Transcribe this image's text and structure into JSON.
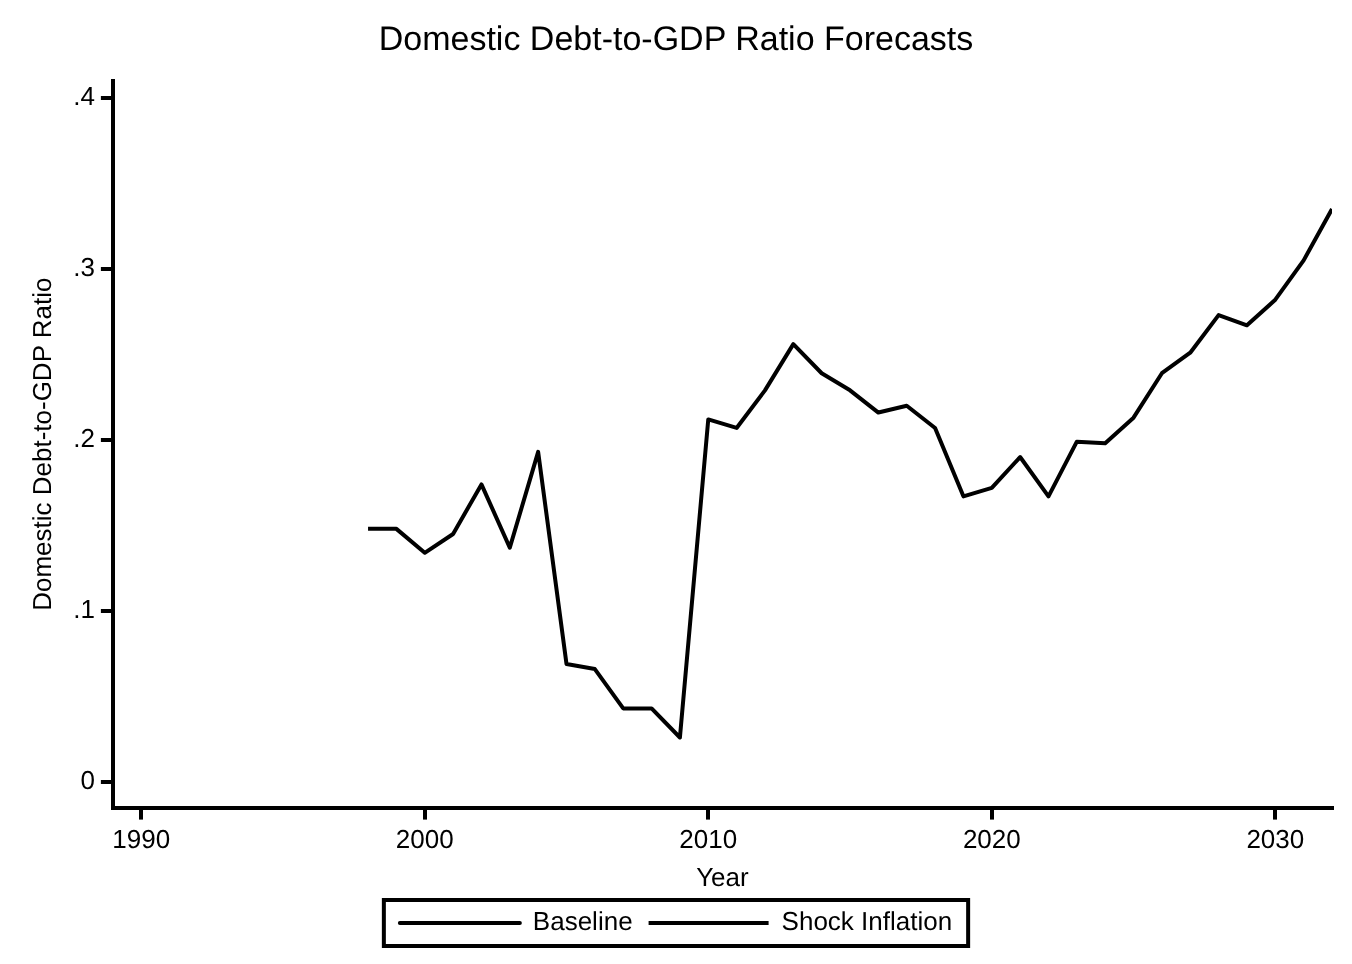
{
  "chart_data": {
    "type": "line",
    "title": "Domestic Debt-to-GDP Ratio Forecasts",
    "xlabel": "Year",
    "ylabel": "Domestic Debt-to-GDP Ratio",
    "x": [
      1998,
      1999,
      2000,
      2001,
      2002,
      2003,
      2004,
      2005,
      2006,
      2007,
      2008,
      2009,
      2010,
      2011,
      2012,
      2013,
      2014,
      2015,
      2016,
      2017,
      2018,
      2019,
      2020,
      2021,
      2022,
      2023,
      2024,
      2025,
      2026,
      2027,
      2028,
      2029,
      2030,
      2031,
      2032
    ],
    "series": [
      {
        "name": "Baseline",
        "color": "#000000",
        "line_style": "solid",
        "values": [
          0.148,
          0.148,
          0.134,
          0.145,
          0.174,
          0.137,
          0.193,
          0.069,
          0.066,
          0.043,
          0.043,
          0.026,
          0.212,
          0.207,
          0.229,
          0.256,
          0.239,
          0.229,
          0.216,
          0.22,
          0.207,
          0.167,
          0.172,
          0.19,
          0.167,
          0.199,
          0.198,
          0.213,
          0.239,
          0.251,
          0.273,
          0.267,
          0.282,
          0.305,
          0.335
        ]
      },
      {
        "name": "Shock Inflation",
        "color": "#000000",
        "line_style": "dashed",
        "values": [
          null,
          null,
          null,
          null,
          null,
          null,
          null,
          null,
          null,
          null,
          null,
          null,
          null,
          null,
          null,
          null,
          null,
          null,
          null,
          null,
          null,
          null,
          null,
          null,
          null,
          null,
          null,
          null,
          null,
          null,
          null,
          null,
          null,
          null,
          null
        ]
      }
    ],
    "xlim": [
      1989,
      2032
    ],
    "xticks": [
      1990,
      2000,
      2010,
      2020,
      2030
    ],
    "ylim": [
      -0.015,
      0.41
    ],
    "yticks": [
      0,
      {
        "value": 0.1,
        "label": ".1"
      },
      {
        "value": 0.2,
        "label": ".2"
      },
      {
        "value": 0.3,
        "label": ".3"
      },
      {
        "value": 0.4,
        "label": ".4"
      }
    ],
    "grid": false,
    "legend": "bottom",
    "marker": "none"
  }
}
